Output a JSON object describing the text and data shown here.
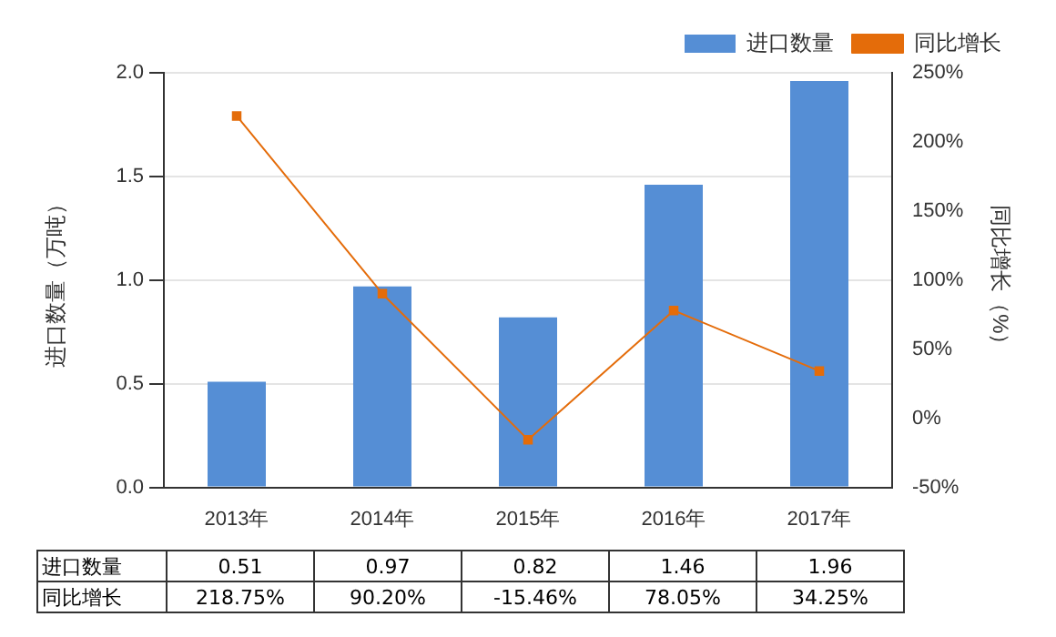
{
  "chart_data": {
    "type": "bar",
    "categories": [
      "2013年",
      "2014年",
      "2015年",
      "2016年",
      "2017年"
    ],
    "series": [
      {
        "name": "进口数量",
        "color": "#558ed5",
        "values": [
          0.51,
          0.97,
          0.82,
          1.46,
          1.96
        ],
        "value_labels": [
          "0.51",
          "0.97",
          "0.82",
          "1.46",
          "1.96"
        ]
      },
      {
        "name": "同比增长",
        "type": "line",
        "axis": "y2",
        "color": "#e46c0a",
        "marker": "square",
        "values": [
          218.75,
          90.2,
          -15.46,
          78.05,
          34.25
        ],
        "value_labels": [
          "218.75%",
          "90.20%",
          "-15.46%",
          "78.05%",
          "34.25%"
        ]
      }
    ],
    "ylabel": "进口数量（万吨）",
    "y2label": "同比增长（%）",
    "ylim": [
      0,
      2
    ],
    "yticks": [
      {
        "value": 0,
        "label": "0.0"
      },
      {
        "value": 0.5,
        "label": "0.5"
      },
      {
        "value": 1,
        "label": "1.0"
      },
      {
        "value": 1.5,
        "label": "1.5"
      },
      {
        "value": 2,
        "label": "2.0"
      }
    ],
    "y2lim": [
      -50,
      250
    ],
    "y2ticks": [
      {
        "value": -50,
        "label": "-50%"
      },
      {
        "value": 0,
        "label": "0%"
      },
      {
        "value": 50,
        "label": "50%"
      },
      {
        "value": 100,
        "label": "100%"
      },
      {
        "value": 150,
        "label": "150%"
      },
      {
        "value": 200,
        "label": "200%"
      },
      {
        "value": 250,
        "label": "250%"
      }
    ],
    "grid": "y",
    "legend": "top right"
  }
}
